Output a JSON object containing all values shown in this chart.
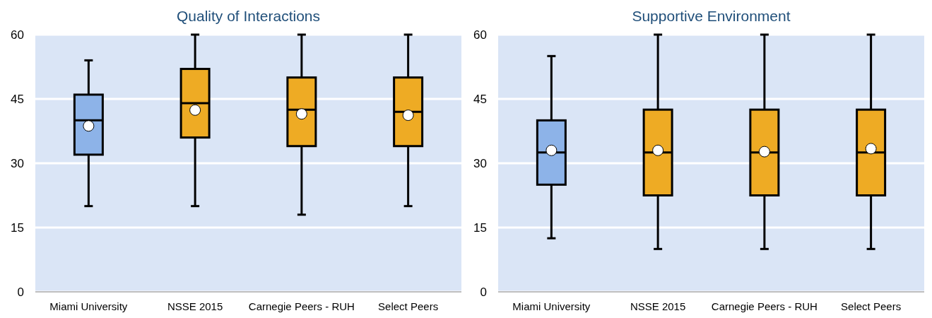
{
  "chart_data": [
    {
      "type": "box",
      "title": "Quality of Interactions",
      "categories": [
        "Miami University",
        "NSSE 2015",
        "Carnegie Peers - RUH",
        "Select Peers"
      ],
      "colors": [
        "#8db3e8",
        "#eeab24",
        "#eeab24",
        "#eeab24"
      ],
      "boxes": [
        {
          "low": 20,
          "q1": 32,
          "median": 40,
          "q3": 46,
          "high": 54,
          "mean": 38.7
        },
        {
          "low": 20,
          "q1": 36,
          "median": 44,
          "q3": 52,
          "high": 60,
          "mean": 42.4
        },
        {
          "low": 18,
          "q1": 34,
          "median": 42.5,
          "q3": 50,
          "high": 60,
          "mean": 41.5
        },
        {
          "low": 20,
          "q1": 34,
          "median": 42,
          "q3": 50,
          "high": 60,
          "mean": 41.2
        }
      ],
      "ylim": [
        0,
        60
      ],
      "yticks": [
        0,
        15,
        30,
        45,
        60
      ],
      "grid": "y"
    },
    {
      "type": "box",
      "title": "Supportive Environment",
      "categories": [
        "Miami University",
        "NSSE 2015",
        "Carnegie Peers - RUH",
        "Select Peers"
      ],
      "colors": [
        "#8db3e8",
        "#eeab24",
        "#eeab24",
        "#eeab24"
      ],
      "boxes": [
        {
          "low": 12.5,
          "q1": 25,
          "median": 32.5,
          "q3": 40,
          "high": 55,
          "mean": 33
        },
        {
          "low": 10,
          "q1": 22.5,
          "median": 32.5,
          "q3": 42.5,
          "high": 60,
          "mean": 33
        },
        {
          "low": 10,
          "q1": 22.5,
          "median": 32.5,
          "q3": 42.5,
          "high": 60,
          "mean": 32.7
        },
        {
          "low": 10,
          "q1": 22.5,
          "median": 32.5,
          "q3": 42.5,
          "high": 60,
          "mean": 33.4
        }
      ],
      "ylim": [
        0,
        60
      ],
      "yticks": [
        0,
        15,
        30,
        45,
        60
      ],
      "grid": "y"
    }
  ]
}
